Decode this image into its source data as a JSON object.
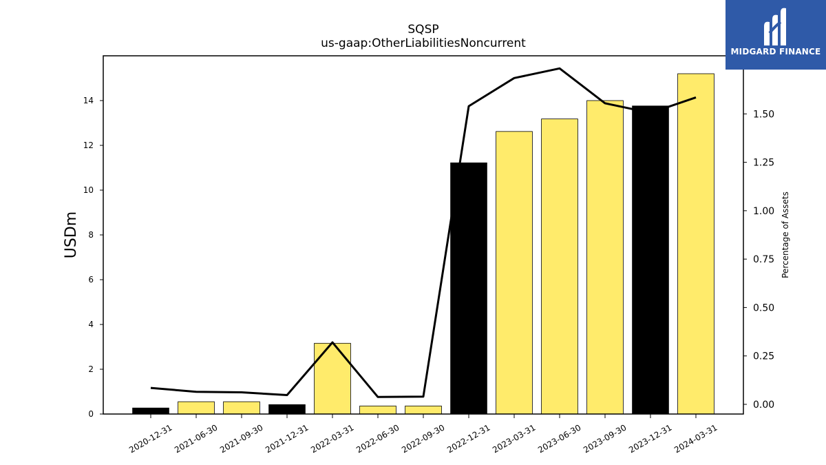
{
  "chart_data": {
    "type": "bar",
    "title": "SQSP",
    "subtitle": "us-gaap:OtherLiabilitiesNoncurrent",
    "ylabel": "USDm",
    "y2label": "Percentage of Assets",
    "categories": [
      "2020-12-31",
      "2021-06-30",
      "2021-09-30",
      "2021-12-31",
      "2022-03-31",
      "2022-06-30",
      "2022-09-30",
      "2022-12-31",
      "2023-03-31",
      "2023-06-30",
      "2023-09-30",
      "2023-12-31",
      "2024-03-31"
    ],
    "series": [
      {
        "values": [
          0.27,
          0.55,
          0.55,
          0.42,
          3.16,
          0.36,
          0.36,
          11.22,
          12.62,
          13.18,
          14.0,
          13.76,
          15.2
        ],
        "bar_colors": [
          "#000000",
          "#ffeb6b",
          "#ffeb6b",
          "#000000",
          "#ffeb6b",
          "#ffeb6b",
          "#ffeb6b",
          "#000000",
          "#ffeb6b",
          "#ffeb6b",
          "#ffeb6b",
          "#000000",
          "#ffeb6b"
        ]
      },
      {
        "type": "line",
        "axis": "right",
        "values": [
          0.085,
          0.065,
          0.062,
          0.048,
          0.32,
          0.038,
          0.04,
          1.54,
          1.685,
          1.735,
          1.555,
          1.505,
          1.585
        ]
      }
    ],
    "ylim": [
      0,
      16
    ],
    "yticks": [
      0,
      2,
      4,
      6,
      8,
      10,
      12,
      14
    ],
    "y2lim": [
      -0.05,
      1.8
    ],
    "y2ticks": [
      "0.00",
      "0.25",
      "0.50",
      "0.75",
      "1.00",
      "1.25",
      "1.50",
      "1.75"
    ],
    "grid": false
  },
  "logo": {
    "text": "MIDGARD FINANCE",
    "bg": "#2f5aa8"
  }
}
